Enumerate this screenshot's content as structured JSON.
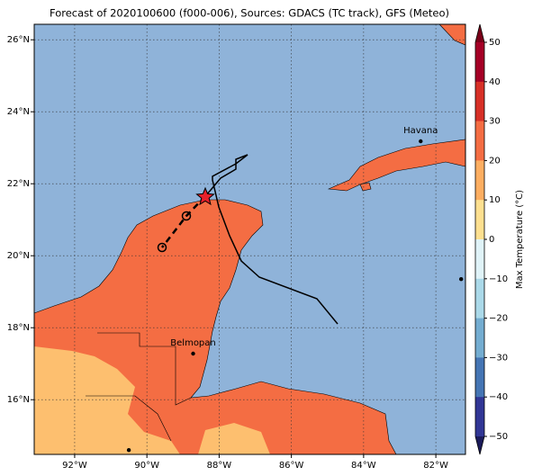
{
  "map": {
    "title": "Forecast of 2020100600 (f000-006), Sources: GDACS (TC track), GFS (Meteo)",
    "xlim": [
      -93.12,
      -81.18
    ],
    "ylim": [
      14.48,
      26.43
    ],
    "xticks": [
      {
        "value": -92,
        "label": "92°W"
      },
      {
        "value": -90,
        "label": "90°W"
      },
      {
        "value": -88,
        "label": "88°W"
      },
      {
        "value": -86,
        "label": "86°W"
      },
      {
        "value": -84,
        "label": "84°W"
      },
      {
        "value": -82,
        "label": "82°W"
      }
    ],
    "yticks": [
      {
        "value": 16,
        "label": "16°N"
      },
      {
        "value": 18,
        "label": "18°N"
      },
      {
        "value": 20,
        "label": "20°N"
      },
      {
        "value": 22,
        "label": "22°N"
      },
      {
        "value": 24,
        "label": "24°N"
      },
      {
        "value": 26,
        "label": "26°N"
      }
    ],
    "grid": true,
    "cities": [
      {
        "name": "Havana",
        "lon": -82.42,
        "lat": 23.18
      },
      {
        "name": "Belmopan",
        "lon": -88.72,
        "lat": 17.28
      }
    ],
    "points": [
      {
        "lon": -90.5,
        "lat": 14.6
      },
      {
        "lon": -81.3,
        "lat": 19.35
      }
    ]
  },
  "colorbar": {
    "label": "Max Temperature (°C)",
    "clim": [
      -50,
      50
    ],
    "ticks": [
      50,
      40,
      30,
      20,
      10,
      0,
      {
        "value": -10,
        "label": "−10"
      },
      {
        "value": -20,
        "label": "−20"
      },
      {
        "value": -30,
        "label": "−30"
      },
      {
        "value": -40,
        "label": "−40"
      },
      {
        "value": -50,
        "label": "−50"
      }
    ],
    "colors": [
      "#a50026",
      "#d73027",
      "#f46d43",
      "#fdae61",
      "#fee090",
      "#e0f3f8",
      "#abd9e9",
      "#74add1",
      "#4575b4",
      "#313695"
    ],
    "over_color": "#7a0019",
    "under_color": "#1a1a5a"
  }
}
